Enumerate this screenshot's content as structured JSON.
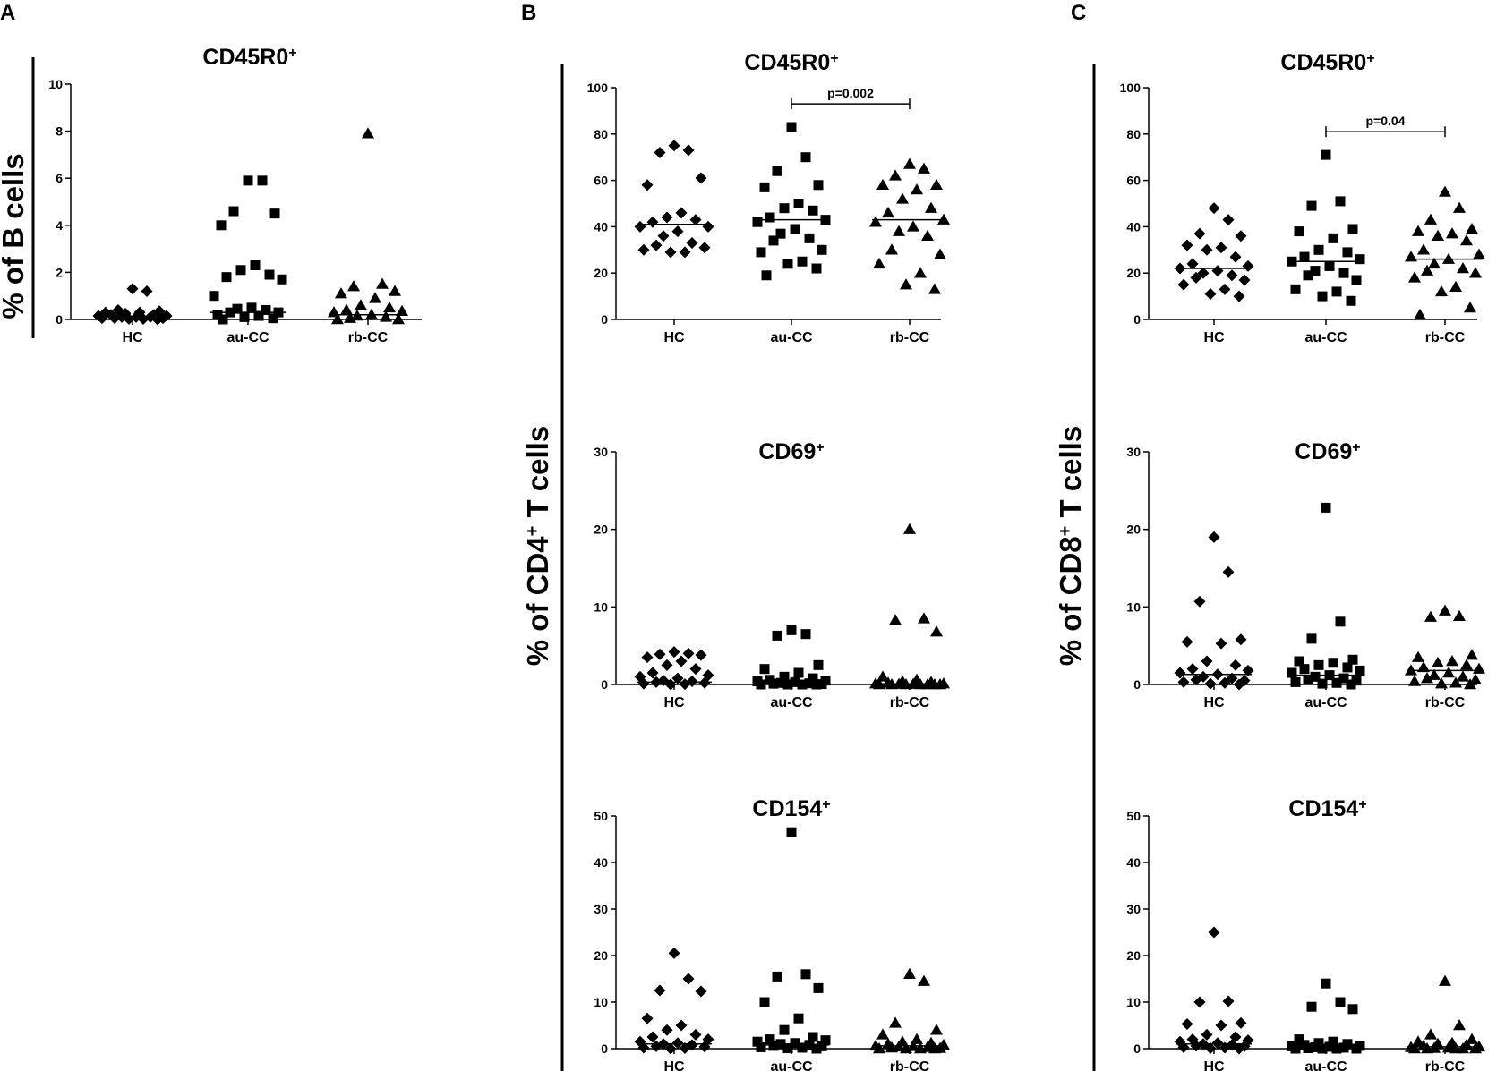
{
  "panels": [
    {
      "letter": "A",
      "ylabel": {
        "pre": "% of B cells",
        "sup": "",
        "post": ""
      }
    },
    {
      "letter": "B",
      "ylabel": {
        "pre": "% of CD4",
        "sup": "+",
        "post": " T cells"
      }
    },
    {
      "letter": "C",
      "ylabel": {
        "pre": "% of CD8",
        "sup": "+",
        "post": " T cells"
      }
    }
  ],
  "chart_data": [
    {
      "type": "scatter",
      "panel": "A",
      "title": "CD45R0",
      "title_sup": "+",
      "categories": [
        "HC",
        "au-CC",
        "rb-CC"
      ],
      "yticks": [
        0,
        2,
        4,
        6,
        8,
        10
      ],
      "ylim": [
        0,
        10
      ],
      "medians": [
        0.12,
        0.3,
        0.2
      ],
      "series": [
        {
          "name": "HC",
          "marker": "diamond",
          "values": [
            1.3,
            1.2,
            0.4,
            0.35,
            0.3,
            0.3,
            0.25,
            0.2,
            0.2,
            0.15,
            0.15,
            0.1,
            0.1,
            0.1,
            0.05,
            0.05,
            0.05,
            0.02,
            0.02,
            0.0
          ]
        },
        {
          "name": "au-CC",
          "marker": "square",
          "values": [
            5.9,
            5.9,
            4.6,
            4.5,
            4.0,
            2.3,
            2.1,
            1.9,
            1.8,
            1.7,
            1.0,
            0.5,
            0.45,
            0.4,
            0.3,
            0.3,
            0.2,
            0.15,
            0.1,
            0.05,
            0.0
          ]
        },
        {
          "name": "rb-CC",
          "marker": "triangle",
          "values": [
            7.9,
            1.5,
            1.4,
            1.2,
            1.1,
            0.9,
            0.6,
            0.5,
            0.4,
            0.35,
            0.3,
            0.2,
            0.15,
            0.1,
            0.05,
            0.0,
            0.0
          ]
        }
      ]
    },
    {
      "type": "scatter",
      "panel": "B",
      "title": "CD45R0",
      "title_sup": "+",
      "categories": [
        "HC",
        "au-CC",
        "rb-CC"
      ],
      "yticks": [
        0,
        20,
        40,
        60,
        80,
        100
      ],
      "ylim": [
        0,
        100
      ],
      "medians": [
        41,
        43,
        43
      ],
      "significance": {
        "from": 1,
        "to": 2,
        "label": "p=0.002",
        "level": 93
      },
      "series": [
        {
          "name": "HC",
          "marker": "diamond",
          "values": [
            75,
            73,
            72,
            61,
            58,
            46,
            44,
            43,
            42,
            40,
            40,
            38,
            36,
            33,
            32,
            31,
            30,
            29,
            29
          ]
        },
        {
          "name": "au-CC",
          "marker": "square",
          "values": [
            83,
            70,
            64,
            58,
            57,
            50,
            48,
            47,
            44,
            43,
            42,
            39,
            37,
            35,
            34,
            30,
            29,
            25,
            24,
            22,
            19
          ]
        },
        {
          "name": "rb-CC",
          "marker": "triangle",
          "values": [
            67,
            65,
            62,
            58,
            58,
            56,
            52,
            48,
            46,
            43,
            42,
            40,
            38,
            36,
            30,
            28,
            24,
            20,
            15,
            13
          ]
        }
      ]
    },
    {
      "type": "scatter",
      "panel": "C",
      "title": "CD45R0",
      "title_sup": "+",
      "categories": [
        "HC",
        "au-CC",
        "rb-CC"
      ],
      "yticks": [
        0,
        20,
        40,
        60,
        80,
        100
      ],
      "ylim": [
        0,
        100
      ],
      "medians": [
        22,
        25,
        26
      ],
      "significance": {
        "from": 1,
        "to": 2,
        "label": "p=0.04",
        "level": 81
      },
      "series": [
        {
          "name": "HC",
          "marker": "diamond",
          "values": [
            48,
            43,
            37,
            36,
            32,
            31,
            30,
            27,
            24,
            23,
            22,
            21,
            20,
            19,
            18,
            17,
            15,
            13,
            11,
            10
          ]
        },
        {
          "name": "au-CC",
          "marker": "square",
          "values": [
            71,
            51,
            49,
            39,
            38,
            35,
            30,
            29,
            27,
            26,
            25,
            23,
            21,
            20,
            19,
            17,
            13,
            12,
            10,
            8
          ]
        },
        {
          "name": "rb-CC",
          "marker": "triangle",
          "values": [
            55,
            48,
            43,
            39,
            38,
            37,
            36,
            34,
            30,
            28,
            27,
            26,
            24,
            22,
            21,
            20,
            18,
            14,
            12,
            5,
            2
          ]
        }
      ]
    },
    {
      "type": "scatter",
      "panel": "B",
      "title": "CD69",
      "title_sup": "+",
      "categories": [
        "HC",
        "au-CC",
        "rb-CC"
      ],
      "yticks": [
        0,
        10,
        20,
        30
      ],
      "ylim": [
        0,
        30
      ],
      "medians": [
        0.3,
        0.4,
        0.1
      ],
      "series": [
        {
          "name": "HC",
          "marker": "diamond",
          "values": [
            4.2,
            4.0,
            3.9,
            3.8,
            3.5,
            3.0,
            2.5,
            2.0,
            1.5,
            1.2,
            1.0,
            0.8,
            0.5,
            0.4,
            0.3,
            0.2,
            0.1,
            0.05,
            0.0
          ]
        },
        {
          "name": "au-CC",
          "marker": "square",
          "values": [
            7.0,
            6.5,
            6.3,
            2.5,
            2.0,
            1.5,
            1.0,
            0.8,
            0.6,
            0.5,
            0.4,
            0.3,
            0.2,
            0.15,
            0.1,
            0.05,
            0.0,
            0.0,
            0.0,
            0.0
          ]
        },
        {
          "name": "rb-CC",
          "marker": "triangle",
          "values": [
            20,
            8.5,
            8.3,
            6.8,
            1.0,
            0.6,
            0.4,
            0.3,
            0.2,
            0.1,
            0.1,
            0.05,
            0.05,
            0.0,
            0.0,
            0.0,
            0.0,
            0.0,
            0.0,
            0.0
          ]
        }
      ]
    },
    {
      "type": "scatter",
      "panel": "C",
      "title": "CD69",
      "title_sup": "+",
      "categories": [
        "HC",
        "au-CC",
        "rb-CC"
      ],
      "yticks": [
        0,
        10,
        20,
        30
      ],
      "ylim": [
        0,
        30
      ],
      "medians": [
        1.3,
        1.2,
        1.8
      ],
      "series": [
        {
          "name": "HC",
          "marker": "diamond",
          "values": [
            19,
            14.5,
            10.7,
            5.8,
            5.5,
            5.3,
            3.0,
            2.5,
            2.0,
            1.8,
            1.5,
            1.3,
            1.0,
            0.8,
            0.6,
            0.5,
            0.3,
            0.2,
            0.1,
            0.0
          ]
        },
        {
          "name": "au-CC",
          "marker": "square",
          "values": [
            22.8,
            8.1,
            5.9,
            3.2,
            3.0,
            2.8,
            2.5,
            2.2,
            2.0,
            1.8,
            1.5,
            1.2,
            1.0,
            0.8,
            0.6,
            0.5,
            0.3,
            0.2,
            0.1,
            0.0
          ]
        },
        {
          "name": "rb-CC",
          "marker": "triangle",
          "values": [
            9.5,
            8.8,
            8.7,
            3.8,
            3.5,
            3.0,
            2.8,
            2.5,
            2.2,
            2.0,
            1.8,
            1.5,
            1.2,
            1.0,
            0.8,
            0.6,
            0.4,
            0.2,
            0.1,
            0.0
          ]
        }
      ]
    },
    {
      "type": "scatter",
      "panel": "B",
      "title": "CD154",
      "title_sup": "+",
      "categories": [
        "HC",
        "au-CC",
        "rb-CC"
      ],
      "yticks": [
        0,
        10,
        20,
        30,
        40,
        50
      ],
      "ylim": [
        0,
        50
      ],
      "medians": [
        1.0,
        0.8,
        0.6
      ],
      "series": [
        {
          "name": "HC",
          "marker": "diamond",
          "values": [
            20.5,
            15,
            12.5,
            12.3,
            6.5,
            5.0,
            4.0,
            3.0,
            2.5,
            2.0,
            1.5,
            1.2,
            1.0,
            0.8,
            0.5,
            0.4,
            0.2,
            0.1,
            0.0
          ]
        },
        {
          "name": "au-CC",
          "marker": "square",
          "values": [
            46.5,
            16,
            15.5,
            13,
            10,
            6.5,
            4.0,
            2.5,
            2.0,
            1.8,
            1.5,
            1.2,
            1.0,
            0.8,
            0.6,
            0.5,
            0.3,
            0.2,
            0.1,
            0.0
          ]
        },
        {
          "name": "rb-CC",
          "marker": "triangle",
          "values": [
            16,
            14.5,
            5.5,
            4.0,
            3.0,
            2.0,
            1.5,
            1.2,
            1.0,
            0.8,
            0.6,
            0.5,
            0.4,
            0.3,
            0.2,
            0.1,
            0.0,
            0.0,
            0.0,
            0.0
          ]
        }
      ]
    },
    {
      "type": "scatter",
      "panel": "C",
      "title": "CD154",
      "title_sup": "+",
      "categories": [
        "HC",
        "au-CC",
        "rb-CC"
      ],
      "yticks": [
        0,
        10,
        20,
        30,
        40,
        50
      ],
      "ylim": [
        0,
        50
      ],
      "medians": [
        1.0,
        0.6,
        0.4
      ],
      "series": [
        {
          "name": "HC",
          "marker": "diamond",
          "values": [
            25,
            10.2,
            10,
            5.5,
            5.3,
            5.0,
            3.0,
            2.5,
            2.0,
            1.8,
            1.5,
            1.2,
            1.0,
            0.8,
            0.6,
            0.5,
            0.3,
            0.2,
            0.1,
            0.0
          ]
        },
        {
          "name": "au-CC",
          "marker": "square",
          "values": [
            14,
            10,
            9,
            8.5,
            2.0,
            1.5,
            1.2,
            1.0,
            0.8,
            0.6,
            0.5,
            0.4,
            0.3,
            0.2,
            0.1,
            0.0,
            0.0,
            0.0,
            0.0
          ]
        },
        {
          "name": "rb-CC",
          "marker": "triangle",
          "values": [
            14.5,
            5.0,
            3.0,
            2.0,
            1.5,
            1.2,
            1.0,
            0.8,
            0.6,
            0.4,
            0.3,
            0.2,
            0.1,
            0.0,
            0.0,
            0.0,
            0.0,
            0.0
          ]
        }
      ]
    }
  ]
}
